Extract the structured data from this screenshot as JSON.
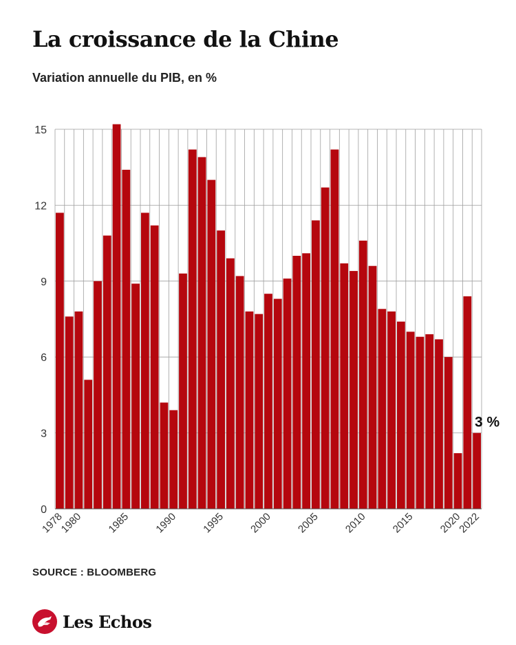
{
  "header": {
    "title": "La croissance de la Chine",
    "subtitle": "Variation annuelle du PIB, en %"
  },
  "footer": {
    "source": "SOURCE : BLOOMBERG",
    "brand": "Les Echos"
  },
  "colors": {
    "bar": "#b5070e",
    "grid": "#9e9e9e",
    "text": "#1a1a1a"
  },
  "chart_data": {
    "type": "bar",
    "title": "La croissance de la Chine",
    "subtitle": "Variation annuelle du PIB, en %",
    "ylim": [
      0,
      15
    ],
    "yticks": [
      0,
      3,
      6,
      9,
      12,
      15
    ],
    "grid": true,
    "categories": [
      1978,
      1979,
      1980,
      1981,
      1982,
      1983,
      1984,
      1985,
      1986,
      1987,
      1988,
      1989,
      1990,
      1991,
      1992,
      1993,
      1994,
      1995,
      1996,
      1997,
      1998,
      1999,
      2000,
      2001,
      2002,
      2003,
      2004,
      2005,
      2006,
      2007,
      2008,
      2009,
      2010,
      2011,
      2012,
      2013,
      2014,
      2015,
      2016,
      2017,
      2018,
      2019,
      2020,
      2021,
      2022
    ],
    "xtick_labels": [
      "1978",
      "1980",
      "1985",
      "1990",
      "1995",
      "2000",
      "2005",
      "2010",
      "2015",
      "2020",
      "2022"
    ],
    "values": [
      11.7,
      7.6,
      7.8,
      5.1,
      9.0,
      10.8,
      15.2,
      13.4,
      8.9,
      11.7,
      11.2,
      4.2,
      3.9,
      9.3,
      14.2,
      13.9,
      13.0,
      11.0,
      9.9,
      9.2,
      7.8,
      7.7,
      8.5,
      8.3,
      9.1,
      10.0,
      10.1,
      11.4,
      12.7,
      14.2,
      9.7,
      9.4,
      10.6,
      9.6,
      7.9,
      7.8,
      7.4,
      7.0,
      6.8,
      6.9,
      6.7,
      6.0,
      2.2,
      8.4,
      3.0
    ],
    "annotation": {
      "year": 2022,
      "text": "3 %"
    }
  }
}
